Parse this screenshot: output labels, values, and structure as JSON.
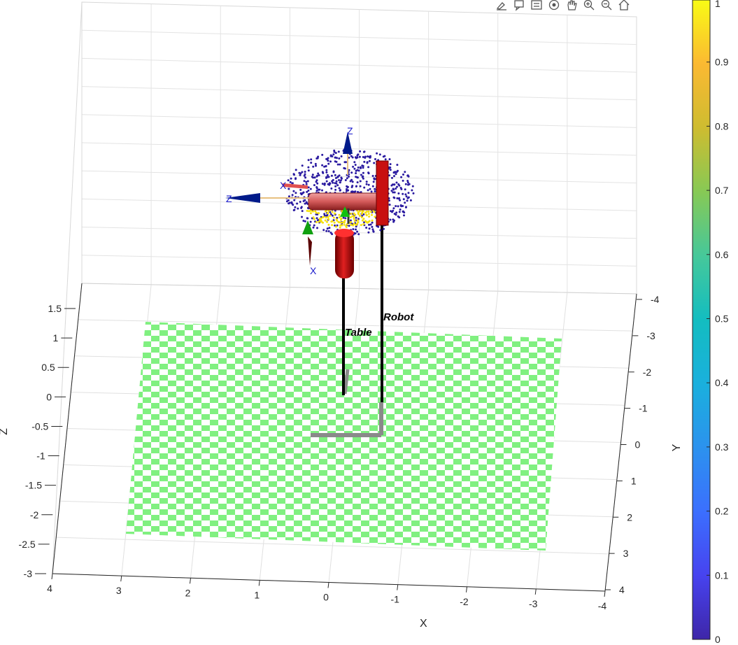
{
  "toolbar": {
    "buttons": [
      {
        "name": "brush-data-button",
        "icon": "brush-icon"
      },
      {
        "name": "data-tips-button",
        "icon": "datatip-icon"
      },
      {
        "name": "legend-button",
        "icon": "legend-icon"
      },
      {
        "name": "rotate-3d-button",
        "icon": "rotate-3d-icon"
      },
      {
        "name": "pan-button",
        "icon": "hand-icon"
      },
      {
        "name": "zoom-in-button",
        "icon": "zoom-in-icon"
      },
      {
        "name": "zoom-out-button",
        "icon": "zoom-out-icon"
      },
      {
        "name": "restore-view-button",
        "icon": "home-icon"
      }
    ]
  },
  "axes": {
    "x_label": "X",
    "y_label": "Y",
    "z_label": "Z",
    "x_ticks": [
      "4",
      "3",
      "2",
      "1",
      "0",
      "-1",
      "-2",
      "-3",
      "-4"
    ],
    "y_ticks": [
      "-4",
      "-3",
      "-2",
      "-1",
      "0",
      "1",
      "2",
      "3",
      "4"
    ],
    "z_ticks": [
      "1.5",
      "1",
      "0.5",
      "0",
      "-0.5",
      "-1",
      "-1.5",
      "-2",
      "-2.5",
      "-3"
    ]
  },
  "scene": {
    "objects": [
      {
        "label": "Robot"
      },
      {
        "label": "Table"
      }
    ],
    "frame_labels": [
      "Z",
      "Z",
      "X",
      "X"
    ],
    "floor_color": "#80f080",
    "robot_color": "#d01010",
    "point_cloud_colors": [
      "#2a1aa0",
      "#f5e00a"
    ]
  },
  "colorbar": {
    "ticks": [
      "1",
      "0.9",
      "0.8",
      "0.7",
      "0.6",
      "0.5",
      "0.4",
      "0.3",
      "0.2",
      "0.1",
      "0"
    ],
    "colormap": "parula"
  }
}
